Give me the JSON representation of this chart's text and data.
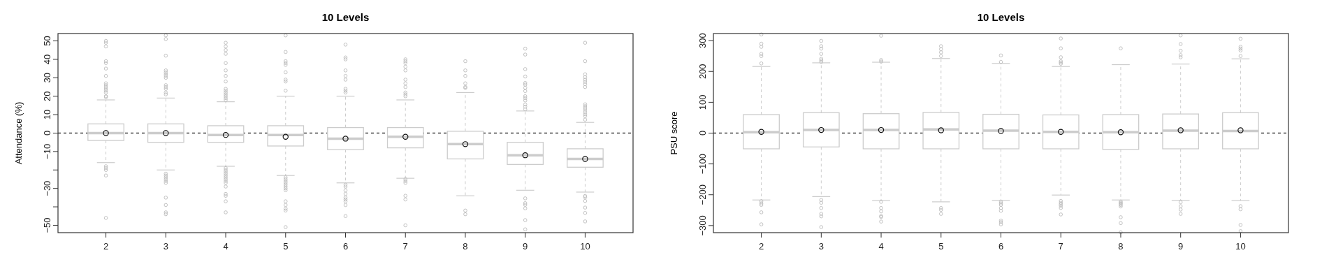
{
  "chart_data": [
    {
      "type": "box",
      "title": "10 Levels",
      "ylabel": "Attendance (%)",
      "categories": [
        "2",
        "3",
        "4",
        "5",
        "6",
        "7",
        "8",
        "9",
        "10"
      ],
      "color": "#cccccc",
      "ylim": [
        -54,
        54
      ],
      "yticks": [
        50,
        40,
        30,
        20,
        10,
        0,
        -10,
        {
          "value": -20,
          "label": null
        },
        -30,
        {
          "value": -40,
          "label": null
        },
        -50
      ],
      "grid": false,
      "ref_lines": [
        {
          "axis": "y",
          "value": 0,
          "color": "#444444",
          "line_style": "dashed"
        }
      ],
      "boxes": [
        {
          "low": -16,
          "q1": -4,
          "median": 0,
          "q3": 5,
          "high": 18,
          "mean": 0,
          "outliers": [
            50,
            49,
            47,
            39,
            38,
            35,
            31,
            27,
            26,
            25,
            24,
            23,
            22,
            20,
            19.5,
            -18,
            -19,
            -20,
            -23,
            -46
          ]
        },
        {
          "low": -20,
          "q1": -5,
          "median": 0,
          "q3": 5,
          "high": 19,
          "mean": 0,
          "outliers": [
            53,
            51,
            42,
            34,
            33,
            32,
            31,
            30,
            26,
            25,
            24,
            22,
            21,
            -22,
            -23,
            -24,
            -25,
            -26,
            -27,
            -35,
            -39,
            -43,
            -44
          ]
        },
        {
          "low": -18,
          "q1": -5,
          "median": -1,
          "q3": 4,
          "high": 17,
          "mean": -1,
          "outliers": [
            49,
            47,
            45,
            43,
            38,
            34,
            31,
            28,
            24,
            23,
            22,
            21,
            20,
            19,
            18,
            -19,
            -20,
            -21,
            -22,
            -23,
            -24,
            -25,
            -26,
            -27,
            -29,
            -33,
            -34,
            -37,
            -43
          ]
        },
        {
          "low": -23,
          "q1": -7,
          "median": -1,
          "q3": 4,
          "high": 20,
          "mean": -2,
          "outliers": [
            53,
            44,
            39,
            38,
            37,
            33,
            29,
            28,
            23,
            -24,
            -25,
            -26,
            -27,
            -28,
            -29,
            -30,
            -31,
            -37,
            -39,
            -41,
            -42,
            -51
          ]
        },
        {
          "low": -27,
          "q1": -9,
          "median": -3,
          "q3": 3,
          "high": 20,
          "mean": -3,
          "outliers": [
            48,
            41,
            40,
            34,
            31,
            29,
            24,
            23,
            22,
            -28,
            -29,
            -31,
            -33,
            -35,
            -36,
            -37,
            -39,
            -45
          ]
        },
        {
          "low": -24.5,
          "q1": -8,
          "median": -2,
          "q3": 3,
          "high": 18,
          "mean": -2,
          "outliers": [
            40,
            39,
            38,
            36,
            34,
            29,
            27,
            25,
            22,
            21,
            20,
            -25,
            -26,
            -27,
            -34,
            -36,
            -50
          ]
        },
        {
          "low": -34,
          "q1": -14,
          "median": -6,
          "q3": 1,
          "high": 22,
          "mean": -6,
          "outliers": [
            39,
            34,
            31,
            27,
            25,
            24.5,
            -42,
            -44
          ]
        },
        {
          "low": -31,
          "q1": -17,
          "median": -12,
          "q3": -5,
          "high": 12,
          "mean": -12,
          "outliers": [
            45.8,
            42.6,
            34.7,
            30.7,
            27.2,
            26.3,
            24.6,
            22.8,
            20,
            19,
            17.7,
            15.5,
            14.3,
            12.9,
            -35.4,
            -38,
            -38.9,
            -40.8,
            -47.2,
            -52.2
          ]
        },
        {
          "low": -32,
          "q1": -18.5,
          "median": -14,
          "q3": -8.5,
          "high": 5.8,
          "mean": -14,
          "outliers": [
            49,
            39,
            31.9,
            30.3,
            29,
            27.8,
            26.5,
            25,
            15.6,
            14.6,
            13.7,
            12.7,
            11.4,
            10.2,
            9.2,
            7.3,
            -34.1,
            -34.8,
            -36.8,
            -40.4,
            -43.3,
            -47.9
          ]
        }
      ]
    },
    {
      "type": "box",
      "title": "10 Levels",
      "ylabel": "PSU score",
      "categories": [
        "2",
        "3",
        "4",
        "5",
        "6",
        "7",
        "8",
        "9",
        "10"
      ],
      "color": "#cccccc",
      "ylim": [
        -323,
        323
      ],
      "yticks": [
        300,
        200,
        100,
        0,
        -100,
        -200,
        -300
      ],
      "grid": false,
      "ref_lines": [
        {
          "axis": "y",
          "value": 0,
          "color": "#444444",
          "line_style": "dashed"
        }
      ],
      "boxes": [
        {
          "low": -217,
          "q1": -51,
          "median": 3,
          "q3": 60,
          "high": 216,
          "mean": 4,
          "outliers": [
            320,
            290,
            280,
            257,
            250,
            226,
            -221,
            -228,
            -233,
            -257,
            -296
          ]
        },
        {
          "low": -206,
          "q1": -45,
          "median": 10,
          "q3": 66,
          "high": 228,
          "mean": 10,
          "outliers": [
            299,
            282,
            274,
            257,
            241,
            236,
            231,
            -217,
            -226,
            -243,
            -262,
            -270,
            -305
          ]
        },
        {
          "low": -219,
          "q1": -51,
          "median": 10,
          "q3": 63,
          "high": 230,
          "mean": 10,
          "outliers": [
            316,
            237,
            232,
            -223,
            -243,
            -254,
            -269,
            -272,
            -287
          ]
        },
        {
          "low": -223,
          "q1": -51,
          "median": 12,
          "q3": 67,
          "high": 242,
          "mean": 9,
          "outliers": [
            282,
            272,
            262,
            250,
            -243,
            -249,
            -262
          ]
        },
        {
          "low": -218,
          "q1": -51,
          "median": 8,
          "q3": 61,
          "high": 226,
          "mean": 7,
          "outliers": [
            252,
            231,
            -223,
            -228,
            -233,
            -243,
            -252,
            -284,
            -289,
            -296
          ]
        },
        {
          "low": -201,
          "q1": -51,
          "median": 4,
          "q3": 59,
          "high": 216,
          "mean": 4,
          "outliers": [
            307,
            275,
            246,
            233,
            229,
            225,
            -220,
            -226,
            -231,
            -236,
            -243,
            -264
          ]
        },
        {
          "low": -217,
          "q1": -53,
          "median": 3,
          "q3": 60,
          "high": 222,
          "mean": 3,
          "outliers": [
            275,
            -222,
            -226,
            -229,
            -233,
            -238,
            -273,
            -292,
            -322
          ]
        },
        {
          "low": -218,
          "q1": -51,
          "median": 8,
          "q3": 62,
          "high": 224,
          "mean": 9,
          "outliers": [
            317,
            289,
            267,
            253,
            246,
            -224,
            -237,
            -248,
            -262
          ]
        },
        {
          "low": -219,
          "q1": -51,
          "median": 7,
          "q3": 66,
          "high": 241,
          "mean": 9,
          "outliers": [
            306,
            280,
            274,
            268,
            250,
            -237,
            -247,
            -298,
            -318
          ]
        }
      ]
    }
  ]
}
